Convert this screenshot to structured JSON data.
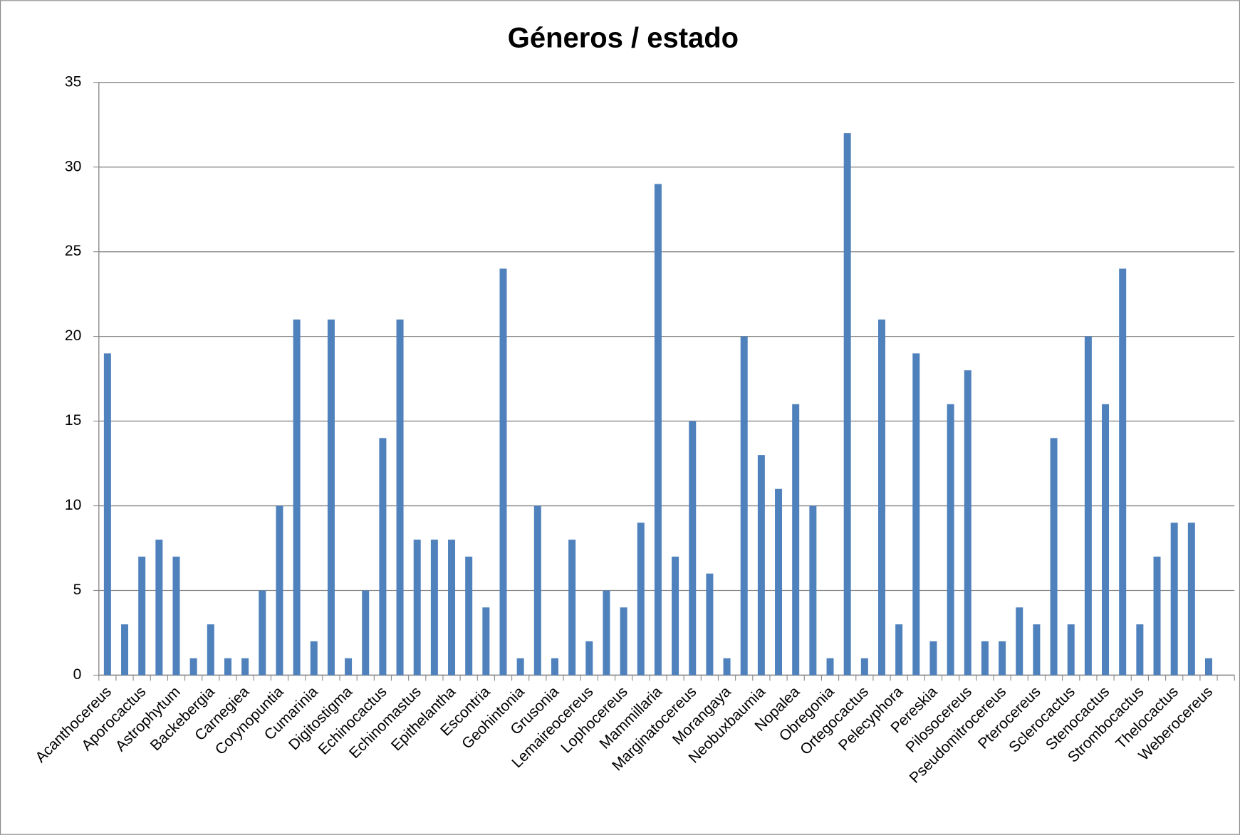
{
  "chart_data": {
    "type": "bar",
    "title": "Géneros / estado",
    "categories": [
      "Acanthocereus",
      null,
      "Aporocactus",
      null,
      "Astrophytum",
      null,
      "Backebergia",
      null,
      "Carnegiea",
      null,
      "Corynopuntia",
      null,
      "Cumarinia",
      null,
      "Digitostigma",
      null,
      "Echinocactus",
      null,
      "Echinomastus",
      null,
      "Epithelantha",
      null,
      "Escontria",
      null,
      "Geohintonia",
      null,
      "Grusonia",
      null,
      "Lemaireocereus",
      null,
      "Lophocereus",
      null,
      "Mammillaria",
      null,
      "Marginatocereus",
      null,
      "Morangaya",
      null,
      "Neobuxbaumia",
      null,
      "Nopalea",
      null,
      "Obregonia",
      null,
      "Ortegocactus",
      null,
      "Pelecyphora",
      null,
      "Pereskia",
      null,
      "Pilosocereus",
      null,
      "Pseudomitrocereus",
      null,
      "Pterocereus",
      null,
      "Sclerocactus",
      null,
      "Stenocactus",
      null,
      "Strombocactus",
      null,
      "Thelocactus",
      null,
      "Weberocereus",
      null
    ],
    "values": [
      19,
      3,
      7,
      8,
      7,
      1,
      3,
      1,
      1,
      5,
      10,
      21,
      2,
      21,
      1,
      5,
      14,
      21,
      8,
      8,
      8,
      7,
      4,
      24,
      1,
      10,
      1,
      8,
      2,
      5,
      4,
      9,
      29,
      7,
      15,
      6,
      1,
      20,
      13,
      11,
      16,
      10,
      1,
      32,
      1,
      21,
      3,
      19,
      2,
      16,
      18,
      2,
      2,
      4,
      3,
      14,
      3,
      20,
      16,
      24,
      3,
      7,
      9,
      9,
      1,
      0
    ],
    "color": "#4f81bd",
    "ylim": [
      0,
      35
    ],
    "yticks": [
      0,
      5,
      10,
      15,
      20,
      25,
      30,
      35
    ],
    "grid": true
  }
}
